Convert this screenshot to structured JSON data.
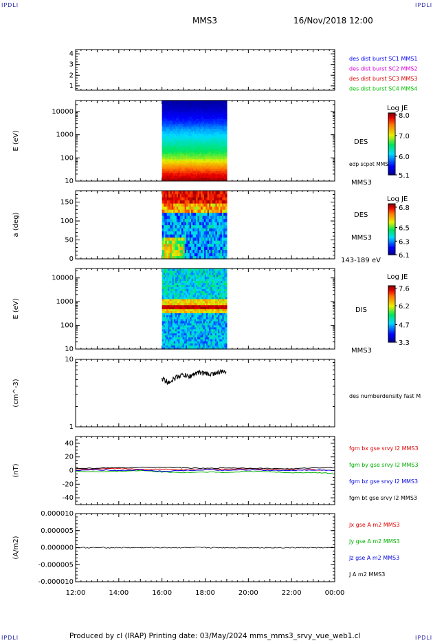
{
  "header": {
    "corner_tl": "IPDLI",
    "corner_tr": "IPDLI",
    "corner_bl": "IPDLI",
    "corner_br": "IPDLI",
    "spacecraft": "MMS3",
    "datetime": "16/Nov/2018 12:00"
  },
  "footer": {
    "text": "Produced by cl (IRAP)   Printing date: 03/May/2024   mms_mms3_srvy_vue_web1.cl"
  },
  "colors": {
    "c1": "#0000ff",
    "c2": "#e000e0",
    "c3": "#e00000",
    "c4": "#00c000",
    "bx": "#e00000",
    "by": "#00b000",
    "bz": "#0000e0",
    "bt": "#000000"
  },
  "chart_data": [
    {
      "type": "table",
      "title": "",
      "xlabel": "",
      "ylabel": "",
      "ylim": [
        0.6,
        4.4
      ],
      "y_ticks": [
        "1",
        "2",
        "3",
        "4"
      ],
      "legend_placement": "right",
      "legend": [
        {
          "name": "des dist burst SC1 MMS1",
          "color": "#0000ff"
        },
        {
          "name": "des dist burst SC2 MMS2",
          "color": "#e000e0"
        },
        {
          "name": "des dist burst SC3 MMS3",
          "color": "#e00000"
        },
        {
          "name": "des dist burst SC4 MMS4",
          "color": "#00c000"
        }
      ]
    },
    {
      "type": "heatmap",
      "ylabel": "E (eV)",
      "y_scale": "log",
      "ylim": [
        10,
        30000
      ],
      "y_ticks": [
        "10",
        "100",
        "1000",
        "10000"
      ],
      "x_range": [
        "16:00",
        "19:00"
      ],
      "side_labels": [
        "DES",
        "edp scpot MMS3",
        "MMS3"
      ],
      "colorbar": {
        "title": "Log JE",
        "range": [
          5.1,
          8.1
        ],
        "ticks": [
          "5.1",
          "6.0",
          "7.0",
          "8.0"
        ]
      },
      "levels_low_to_high_energy": [
        8.05,
        7.8,
        7.4,
        6.9,
        6.6,
        6.4,
        6.2,
        6.0,
        5.7,
        5.5,
        5.3,
        5.2
      ]
    },
    {
      "type": "heatmap",
      "ylabel": "a (deg)",
      "ylim": [
        0,
        180
      ],
      "y_ticks": [
        "0",
        "50",
        "100",
        "150"
      ],
      "x_range": [
        "16:00",
        "19:00"
      ],
      "side_labels": [
        "DES",
        "MMS3",
        "143-189 eV"
      ],
      "colorbar": {
        "title": "Log JE",
        "range": [
          6.1,
          6.85
        ],
        "ticks": [
          "6.1",
          "6.3",
          "6.5",
          "6.8"
        ]
      }
    },
    {
      "type": "heatmap",
      "ylabel": "E (eV)",
      "y_scale": "log",
      "ylim": [
        10,
        25000
      ],
      "y_ticks": [
        "10",
        "100",
        "1000",
        "10000"
      ],
      "x_range": [
        "16:00",
        "19:00"
      ],
      "side_labels": [
        "DIS",
        "MMS3"
      ],
      "colorbar": {
        "title": "Log JE",
        "range": [
          3.3,
          7.8
        ],
        "ticks": [
          "3.3",
          "4.7",
          "6.2",
          "7.6"
        ]
      }
    },
    {
      "type": "line",
      "ylabel": "(cm^-3)",
      "y_scale": "log",
      "ylim": [
        1,
        10
      ],
      "y_ticks": [
        "1",
        "10"
      ],
      "series": [
        {
          "name": "des numberdensity fast M",
          "color": "#000000",
          "x": [
            16.0,
            16.25,
            16.5,
            16.75,
            17.0,
            17.25,
            17.5,
            17.75,
            18.0,
            18.25,
            18.5,
            18.75,
            19.0
          ],
          "y": [
            5.2,
            4.6,
            5.0,
            5.6,
            5.9,
            5.5,
            6.1,
            6.4,
            6.2,
            6.0,
            6.3,
            6.5,
            6.7
          ]
        }
      ]
    },
    {
      "type": "line",
      "ylabel": "(nT)",
      "ylim": [
        -50,
        50
      ],
      "y_ticks": [
        "-40",
        "-20",
        "0",
        "20",
        "40"
      ],
      "x": [
        12,
        13,
        14,
        15,
        16,
        17,
        18,
        19,
        20,
        21,
        22,
        23,
        24
      ],
      "series": [
        {
          "name": "fgm bx gse srvy l2 MMS3",
          "color": "#e00000",
          "values": [
            2,
            2.5,
            3,
            2,
            2,
            1,
            1.5,
            2,
            2.5,
            2,
            1.5,
            1,
            0.5
          ]
        },
        {
          "name": "fgm by gse srvy l2 MMS3",
          "color": "#00b000",
          "values": [
            -1,
            -2,
            -1,
            0,
            -2,
            -3,
            -2,
            -3,
            -1,
            -2,
            -3,
            -3,
            -4
          ]
        },
        {
          "name": "fgm bz gse srvy l2 MMS3",
          "color": "#0000e0",
          "values": [
            0,
            1,
            0,
            1,
            -1,
            0,
            1,
            0,
            1,
            0,
            0,
            1,
            0
          ]
        },
        {
          "name": "fgm bt gse srvy l2 MMS3",
          "color": "#000000",
          "values": [
            3,
            3.5,
            4,
            4.5,
            5,
            4,
            3,
            4,
            3.5,
            3,
            2.5,
            4,
            4.5
          ]
        }
      ]
    },
    {
      "type": "line",
      "ylabel": "(A/m2)",
      "ylim": [
        -1e-05,
        1e-05
      ],
      "y_ticks": [
        "-0.000010",
        "-0.000005",
        "0.000000",
        "0.000005",
        "0.000010"
      ],
      "x_ticks": [
        "12:00",
        "14:00",
        "16:00",
        "18:00",
        "20:00",
        "22:00",
        "00:00"
      ],
      "series": [
        {
          "name": "Jx gse A m2 MMS3",
          "color": "#e00000"
        },
        {
          "name": "Jy gse A m2 MMS3",
          "color": "#00b000"
        },
        {
          "name": "Jz gse A m2 MMS3",
          "color": "#0000e0"
        },
        {
          "name": "J A m2 MMS3",
          "color": "#000000"
        }
      ]
    }
  ]
}
